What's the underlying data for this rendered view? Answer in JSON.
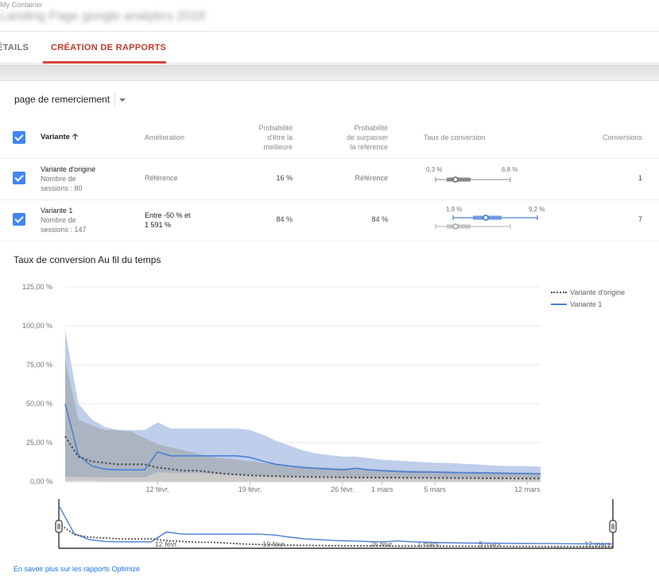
{
  "header": {
    "container_label": "My Container",
    "page_title": "Landing Page google analytics 2018"
  },
  "tabs": [
    {
      "label": "ÉTAILS",
      "active": false
    },
    {
      "label": "CRÉATION DE RAPPORTS",
      "active": true
    }
  ],
  "objective_selector": {
    "value": "page de remerciement"
  },
  "table": {
    "headers": {
      "variant": "Variante",
      "improvement": "Amélioration",
      "prob_best_1": "Probabilité",
      "prob_best_2": "d'être la",
      "prob_best_3": "meilleure",
      "prob_beat_1": "Probabilité",
      "prob_beat_2": "de surpasser",
      "prob_beat_3": "la référence",
      "conversion_rate": "Taux de conversion",
      "conversions": "Conversions"
    },
    "rows": [
      {
        "name": "Variante d'origine",
        "sessions_1": "Nombre de",
        "sessions_2": "sessions : 80",
        "improvement": "Référence",
        "prob_best": "16 %",
        "prob_beat": "Référence",
        "ci_low": "0,3 %",
        "ci_high": "6,8 %",
        "conversions": "1"
      },
      {
        "name": "Variante 1",
        "sessions_1": "Nombre de",
        "sessions_2": "sessions : 147",
        "improvement_1": "Entre -50 % et",
        "improvement_2": "1 591 %",
        "prob_best": "84 %",
        "prob_beat": "84 %",
        "ci_low": "1,9 %",
        "ci_high": "9,2 %",
        "conversions": "7"
      }
    ]
  },
  "chart_title": "Taux de conversion Au fil du temps",
  "colors": {
    "accent_red": "#d6453d",
    "checkbox_blue": "#4285f4",
    "variant_line": "#4a7fd4",
    "variant_band": "#b3c6e7",
    "original_line": "#555555",
    "original_band": "#9e9e9e"
  },
  "chart_data": {
    "type": "line",
    "title": "Taux de conversion Au fil du temps",
    "y_ticks": [
      "125,00 %",
      "100,00 %",
      "75,00 %",
      "50,00 %",
      "25,00 %",
      "0,00 %"
    ],
    "ylim": [
      0,
      125
    ],
    "x_ticks": [
      "12 févr.",
      "19 févr.",
      "26 févr.",
      "1 mars",
      "5 mars",
      "12 mars"
    ],
    "x_tick_days": [
      8,
      15,
      22,
      25,
      29,
      36
    ],
    "x": [
      1,
      2,
      3,
      4,
      5,
      6,
      7,
      8,
      9,
      10,
      11,
      12,
      13,
      14,
      15,
      16,
      17,
      18,
      19,
      20,
      21,
      22,
      23,
      24,
      25,
      26,
      27,
      28,
      29,
      30,
      31,
      32,
      33,
      34,
      35,
      36,
      37
    ],
    "legend_position": "top-right",
    "series": [
      {
        "name": "Variante d'origine",
        "style": "dotted",
        "values": [
          29,
          16,
          13,
          12,
          11,
          11,
          11,
          9,
          8,
          7,
          7,
          6,
          5,
          4.5,
          4,
          3.6,
          3.4,
          3.2,
          3,
          2.9,
          2.8,
          2.7,
          2.6,
          2.6,
          2.5,
          2.5,
          2.4,
          2.4,
          2.3,
          2.3,
          2.2,
          2.2,
          2.1,
          2.1,
          2.0,
          2.0,
          2.0
        ],
        "upper": [
          78,
          40,
          36,
          33,
          33,
          32,
          28,
          24,
          22,
          20,
          18,
          16,
          15,
          14,
          13,
          12,
          11,
          10,
          10,
          9,
          9,
          8.5,
          8,
          8,
          7.5,
          7.5,
          7,
          7,
          6.8,
          6.6,
          6.4,
          6.2,
          6,
          6,
          5.8,
          5.7,
          5.5
        ],
        "lower": [
          0.5,
          0.5,
          0.5,
          0.4,
          0.4,
          0.4,
          0.4,
          0.4,
          0.3,
          0.3,
          0.3,
          0.3,
          0.3,
          0.3,
          0.3,
          0.3,
          0.3,
          0.3,
          0.3,
          0.3,
          0.3,
          0.3,
          0.3,
          0.3,
          0.3,
          0.3,
          0.3,
          0.3,
          0.3,
          0.3,
          0.3,
          0.3,
          0.3,
          0.3,
          0.3,
          0.3,
          0.3
        ]
      },
      {
        "name": "Variante 1",
        "style": "solid",
        "values": [
          50,
          17,
          10,
          8,
          7.5,
          7.5,
          7.5,
          19,
          16.5,
          16.5,
          16.5,
          16.5,
          16.5,
          16.5,
          15.5,
          13,
          11,
          10,
          9,
          8.5,
          8,
          7.5,
          8.5,
          7.5,
          7,
          6.5,
          6.2,
          6,
          6,
          5.8,
          5.6,
          5.5,
          5.5,
          5.3,
          5.2,
          5.1,
          5
        ],
        "upper": [
          97,
          50,
          40,
          35,
          33,
          33,
          33,
          38,
          34,
          34,
          34,
          34,
          34,
          34,
          33,
          30,
          26,
          23,
          20,
          18,
          17,
          16,
          16,
          15,
          14,
          13.5,
          13,
          12.5,
          12,
          12,
          11.5,
          11,
          10.5,
          10,
          10,
          9.8,
          9.5
        ],
        "lower": [
          3,
          3,
          2.8,
          2.6,
          2.6,
          2.6,
          2.6,
          6,
          5.5,
          5.5,
          5.5,
          5,
          4.8,
          4.6,
          4.4,
          4,
          3.8,
          3.6,
          3.5,
          3.4,
          3.3,
          3.2,
          3.2,
          3.1,
          3,
          3,
          2.9,
          2.9,
          2.8,
          2.8,
          2.7,
          2.7,
          2.6,
          2.6,
          2.6,
          2.5,
          2.5
        ]
      }
    ]
  },
  "link_text": "En savoir plus sur les rapports Optimize"
}
